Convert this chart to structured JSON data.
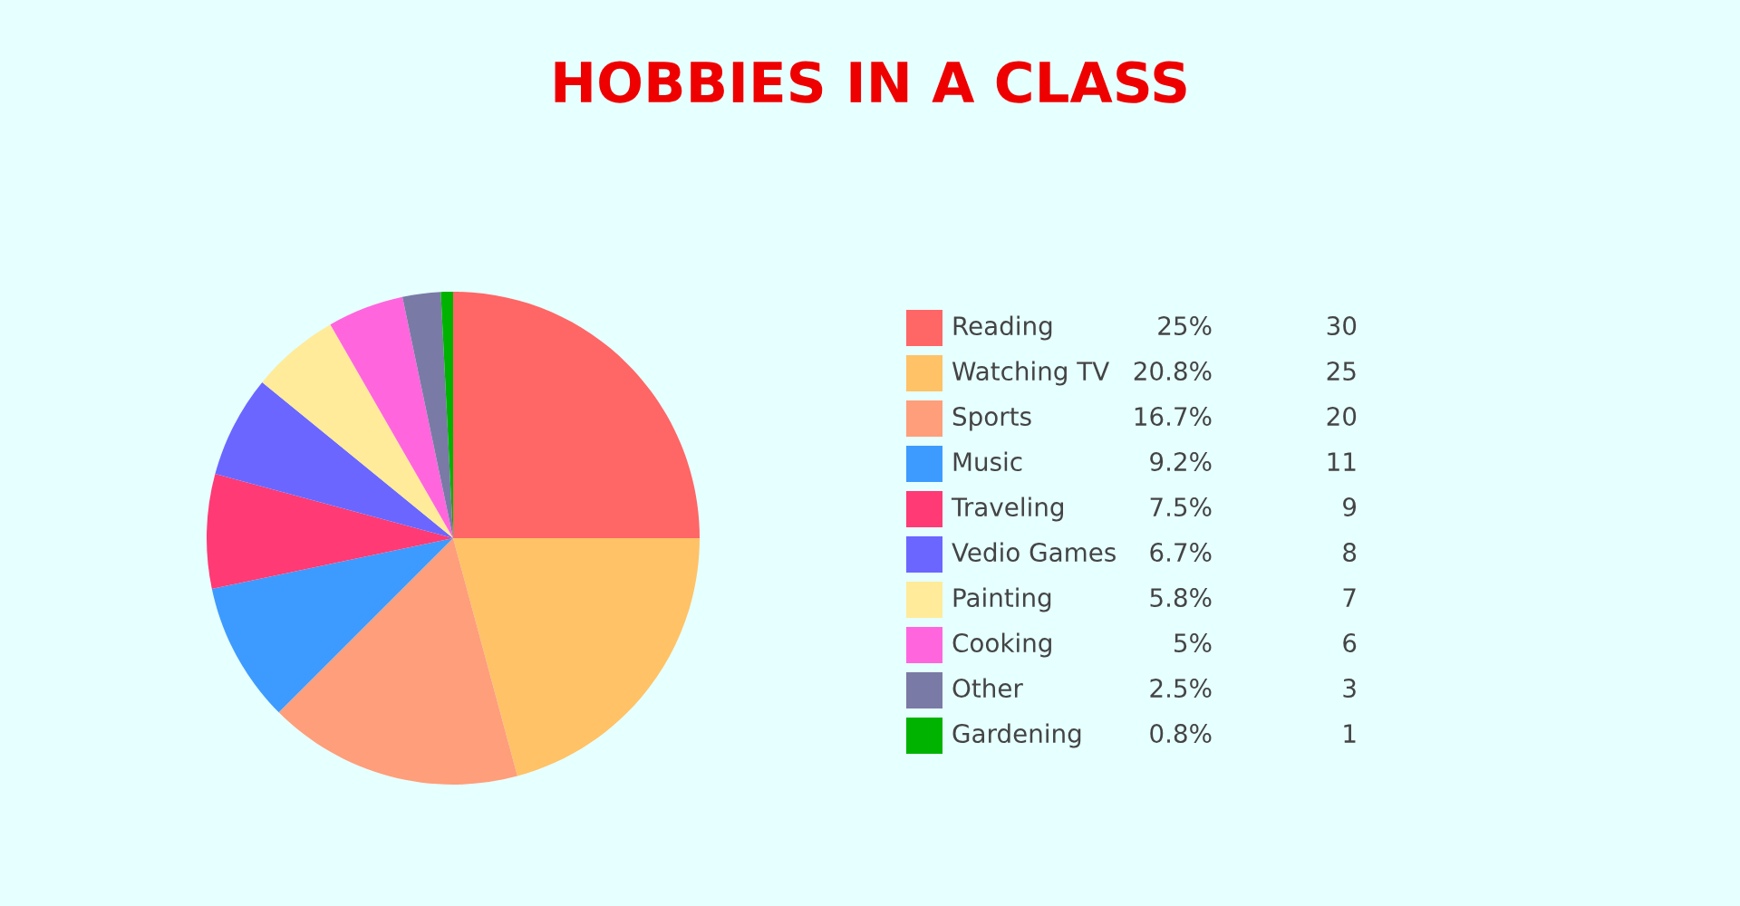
{
  "chart_data": {
    "type": "pie",
    "title": "HOBBIES IN A CLASS",
    "categories": [
      "Reading",
      "Watching TV",
      "Sports",
      "Music",
      "Traveling",
      "Vedio Games",
      "Painting",
      "Cooking",
      "Other",
      "Gardening"
    ],
    "values": [
      25,
      20.8,
      16.7,
      9.2,
      7.5,
      6.7,
      5.8,
      5,
      2.5,
      0.8
    ],
    "value_labels": [
      "25%",
      "20.8%",
      "16.7%",
      "9.2%",
      "7.5%",
      "6.7%",
      "5.8%",
      "5%",
      "2.5%",
      "0.8%"
    ],
    "annotations": [
      {
        "text": "30",
        "x": "Reading"
      },
      {
        "text": "25",
        "x": "Watching TV"
      },
      {
        "text": "20",
        "x": "Sports"
      },
      {
        "text": "11",
        "x": "Music"
      },
      {
        "text": "9",
        "x": "Traveling"
      },
      {
        "text": "8",
        "x": "Vedio Games"
      },
      {
        "text": "7",
        "x": "Painting"
      },
      {
        "text": "6",
        "x": "Cooking"
      },
      {
        "text": "3",
        "x": "Other"
      },
      {
        "text": "1",
        "x": "Gardening"
      }
    ],
    "colors": [
      "#ff6666",
      "#ffc266",
      "#ff9e7a",
      "#3d9bff",
      "#ff3a75",
      "#6b66ff",
      "#ffeb99",
      "#ff66dd",
      "#7a7aa6",
      "#00b300"
    ],
    "legend": "right"
  }
}
